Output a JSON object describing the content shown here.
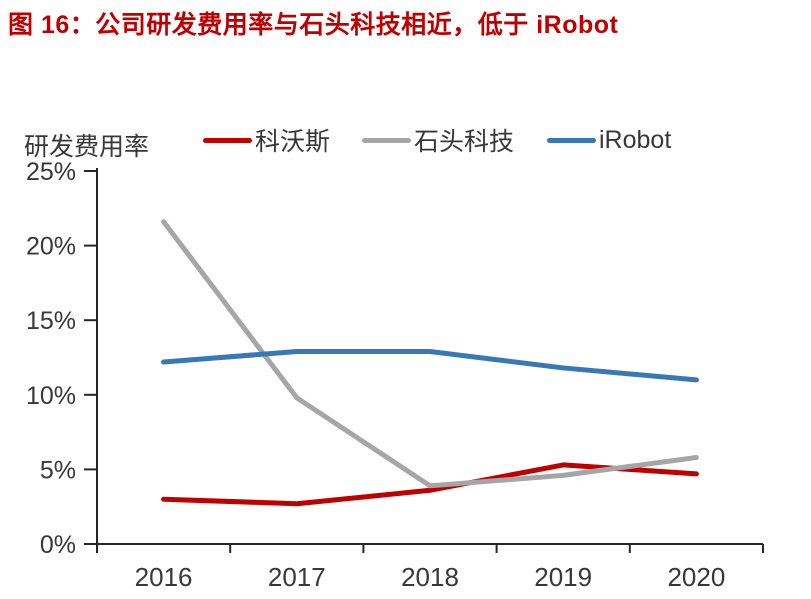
{
  "title": "图 16：公司研发费用率与石头科技相近，低于 iRobot",
  "title_color": "#C00000",
  "chart_data": {
    "type": "line",
    "title": "图 16：公司研发费用率与石头科技相近，低于 iRobot",
    "ylabel": "研发费用率",
    "xlabel": "",
    "unit": "percent",
    "categories": [
      "2016",
      "2017",
      "2018",
      "2019",
      "2020"
    ],
    "ylim": [
      0,
      25
    ],
    "y_ticks": [
      "0%",
      "5%",
      "10%",
      "15%",
      "20%",
      "25%"
    ],
    "grid": false,
    "legend_position": "top",
    "axis_color": "#262626",
    "text_color": "#383838",
    "series": [
      {
        "name": "科沃斯",
        "color": "#C00000",
        "values": [
          3.0,
          2.7,
          3.6,
          5.3,
          4.7
        ]
      },
      {
        "name": "石头科技",
        "color": "#A6A6A6",
        "values": [
          21.6,
          9.8,
          3.9,
          4.6,
          5.8
        ]
      },
      {
        "name": "iRobot",
        "color": "#3879B5",
        "values": [
          12.2,
          12.9,
          12.9,
          11.8,
          11.0
        ]
      }
    ]
  }
}
